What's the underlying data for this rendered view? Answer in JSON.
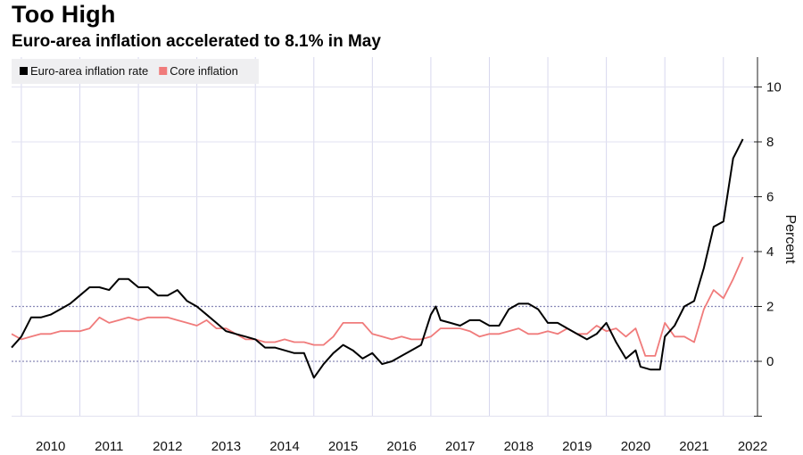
{
  "chart_data": {
    "type": "line",
    "title": "Too High",
    "subtitle": "Euro-area inflation accelerated to 8.1% in May",
    "xlabel": "",
    "ylabel": "Percent",
    "ylim": [
      -2,
      11
    ],
    "yticks": [
      -2,
      0,
      2,
      4,
      6,
      8,
      10
    ],
    "ytick_labels": [
      "",
      "0",
      "2",
      "4",
      "6",
      "8",
      "10"
    ],
    "reference_lines": [
      0,
      2
    ],
    "xticks": [
      "2010",
      "2011",
      "2012",
      "2013",
      "2014",
      "2015",
      "2016",
      "2017",
      "2018",
      "2019",
      "2020",
      "2021",
      "2022"
    ],
    "grid": true,
    "legend_position": "top-left",
    "series": [
      {
        "name": "Euro-area inflation rate",
        "color": "#000000",
        "x": [
          "2009-11",
          "2010-01",
          "2010-03",
          "2010-05",
          "2010-07",
          "2010-09",
          "2010-11",
          "2011-01",
          "2011-03",
          "2011-05",
          "2011-07",
          "2011-09",
          "2011-11",
          "2012-01",
          "2012-03",
          "2012-05",
          "2012-07",
          "2012-09",
          "2012-11",
          "2013-01",
          "2013-03",
          "2013-05",
          "2013-07",
          "2013-09",
          "2013-11",
          "2014-01",
          "2014-03",
          "2014-05",
          "2014-07",
          "2014-09",
          "2014-11",
          "2015-01",
          "2015-03",
          "2015-05",
          "2015-07",
          "2015-09",
          "2015-11",
          "2016-01",
          "2016-03",
          "2016-05",
          "2016-07",
          "2016-09",
          "2016-11",
          "2017-01",
          "2017-02",
          "2017-03",
          "2017-05",
          "2017-07",
          "2017-09",
          "2017-11",
          "2018-01",
          "2018-03",
          "2018-05",
          "2018-07",
          "2018-09",
          "2018-11",
          "2019-01",
          "2019-03",
          "2019-05",
          "2019-07",
          "2019-09",
          "2019-11",
          "2020-01",
          "2020-03",
          "2020-05",
          "2020-07",
          "2020-08",
          "2020-10",
          "2020-12",
          "2021-01",
          "2021-03",
          "2021-05",
          "2021-07",
          "2021-09",
          "2021-11",
          "2022-01",
          "2022-03",
          "2022-05"
        ],
        "values": [
          0.5,
          0.9,
          1.6,
          1.6,
          1.7,
          1.9,
          2.1,
          2.4,
          2.7,
          2.7,
          2.6,
          3.0,
          3.0,
          2.7,
          2.7,
          2.4,
          2.4,
          2.6,
          2.2,
          2.0,
          1.7,
          1.4,
          1.1,
          1.0,
          0.9,
          0.8,
          0.5,
          0.5,
          0.4,
          0.3,
          0.3,
          -0.6,
          -0.1,
          0.3,
          0.6,
          0.4,
          0.1,
          0.3,
          -0.1,
          0.0,
          0.2,
          0.4,
          0.6,
          1.7,
          2.0,
          1.5,
          1.4,
          1.3,
          1.5,
          1.5,
          1.3,
          1.3,
          1.9,
          2.1,
          2.1,
          1.9,
          1.4,
          1.4,
          1.2,
          1.0,
          0.8,
          1.0,
          1.4,
          0.7,
          0.1,
          0.4,
          -0.2,
          -0.3,
          -0.3,
          0.9,
          1.3,
          2.0,
          2.2,
          3.4,
          4.9,
          5.1,
          7.4,
          8.1
        ]
      },
      {
        "name": "Core inflation",
        "color": "#f07b7b",
        "x": [
          "2009-11",
          "2010-01",
          "2010-03",
          "2010-05",
          "2010-07",
          "2010-09",
          "2010-11",
          "2011-01",
          "2011-03",
          "2011-05",
          "2011-07",
          "2011-09",
          "2011-11",
          "2012-01",
          "2012-03",
          "2012-05",
          "2012-07",
          "2012-09",
          "2012-11",
          "2013-01",
          "2013-03",
          "2013-05",
          "2013-07",
          "2013-09",
          "2013-11",
          "2014-01",
          "2014-03",
          "2014-05",
          "2014-07",
          "2014-09",
          "2014-11",
          "2015-01",
          "2015-03",
          "2015-05",
          "2015-07",
          "2015-09",
          "2015-11",
          "2016-01",
          "2016-03",
          "2016-05",
          "2016-07",
          "2016-09",
          "2016-11",
          "2017-01",
          "2017-03",
          "2017-05",
          "2017-07",
          "2017-09",
          "2017-11",
          "2018-01",
          "2018-03",
          "2018-05",
          "2018-07",
          "2018-09",
          "2018-11",
          "2019-01",
          "2019-03",
          "2019-05",
          "2019-07",
          "2019-09",
          "2019-11",
          "2020-01",
          "2020-03",
          "2020-05",
          "2020-07",
          "2020-09",
          "2020-11",
          "2021-01",
          "2021-03",
          "2021-05",
          "2021-07",
          "2021-09",
          "2021-11",
          "2022-01",
          "2022-03",
          "2022-05"
        ],
        "values": [
          1.0,
          0.8,
          0.9,
          1.0,
          1.0,
          1.1,
          1.1,
          1.1,
          1.2,
          1.6,
          1.4,
          1.5,
          1.6,
          1.5,
          1.6,
          1.6,
          1.6,
          1.5,
          1.4,
          1.3,
          1.5,
          1.2,
          1.2,
          1.0,
          0.8,
          0.8,
          0.7,
          0.7,
          0.8,
          0.7,
          0.7,
          0.6,
          0.6,
          0.9,
          1.4,
          1.4,
          1.4,
          1.0,
          0.9,
          0.8,
          0.9,
          0.8,
          0.8,
          0.9,
          1.2,
          1.2,
          1.2,
          1.1,
          0.9,
          1.0,
          1.0,
          1.1,
          1.2,
          1.0,
          1.0,
          1.1,
          1.0,
          1.2,
          1.0,
          1.0,
          1.3,
          1.1,
          1.2,
          0.9,
          1.2,
          0.2,
          0.2,
          1.4,
          0.9,
          0.9,
          0.7,
          1.9,
          2.6,
          2.3,
          3.0,
          3.8
        ]
      }
    ]
  }
}
